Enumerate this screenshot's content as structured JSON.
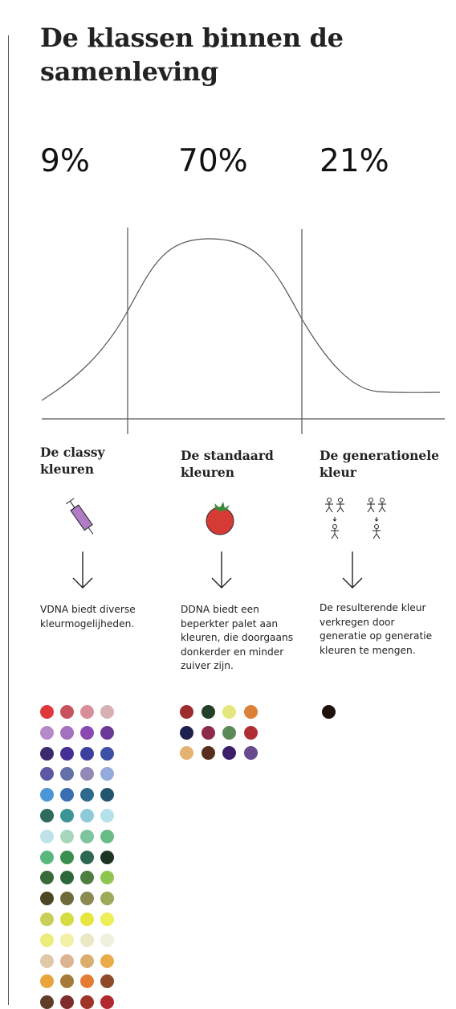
{
  "title": "De klassen binnen de samenleving",
  "percentages": [
    "9%",
    "70%",
    "21%"
  ],
  "columns": [
    {
      "title_line1": "De classy",
      "title_line2": "kleuren",
      "icon": "syringe-icon",
      "description": "VDNA biedt diverse kleurmogelijheden."
    },
    {
      "title_line1": "De standaard",
      "title_line2": "kleuren",
      "icon": "tomato-icon",
      "description": "DDNA biedt een beperkter palet aan kleuren, die doorgaans donkerder en minder zuiver zijn."
    },
    {
      "title_line1": "De generationele",
      "title_line2": "kleur",
      "icon": "family-tree-icon",
      "description": "De resulterende kleur verkregen door generatie op generatie kleuren te mengen."
    }
  ],
  "colors": {
    "line": "#555555",
    "syringe": "#b07cc6",
    "tomato": "#d63a35",
    "tomato_leaf": "#3a8a3a",
    "generational": "#1e120c"
  },
  "swatches": {
    "classy": [
      "#e0373a",
      "#c8535e",
      "#d98f9a",
      "#d6b0b4",
      "#b48ac8",
      "#a470c0",
      "#8a48b0",
      "#6a3896",
      "#3c2a6e",
      "#452f96",
      "#3b3f9e",
      "#3c50a6",
      "#5c58a6",
      "#6470a8",
      "#9488b6",
      "#94aadb",
      "#4a96d6",
      "#3a6eb2",
      "#2e6a8e",
      "#23566e",
      "#2e6a5e",
      "#3c9494",
      "#8ecad8",
      "#b6e0ea",
      "#bfe2ea",
      "#a6d6bc",
      "#7ec49e",
      "#68bc86",
      "#5ab87e",
      "#3a8e4e",
      "#2e6850",
      "#1d3424",
      "#3a6a3a",
      "#2e683a",
      "#4e7e40",
      "#8ec650",
      "#4c4624",
      "#6e6a3a",
      "#8a8a52",
      "#9eaa58",
      "#c8d05a",
      "#d6dc44",
      "#e6e640",
      "#eeee58",
      "#ecec7a",
      "#f0f0a6",
      "#ebe8c6",
      "#f0f0de",
      "#e0c8a8",
      "#dcb492",
      "#dcae6e",
      "#eaac4a",
      "#eaa43c",
      "#a67a38",
      "#e67c34",
      "#8e4a28",
      "#5e3e28",
      "#7e2c2c",
      "#9e3428",
      "#b02830"
    ],
    "standard": [
      "#9e2b2e",
      "#24402a",
      "#e6e67e",
      "#dc8038",
      "#1e2050",
      "#8e2a4a",
      "#5a8a56",
      "#ae2e34",
      "#e6b272",
      "#5a2e1e",
      "#3a1e6a",
      "#6a4a8e"
    ],
    "generational": [
      "#1e120c"
    ]
  }
}
